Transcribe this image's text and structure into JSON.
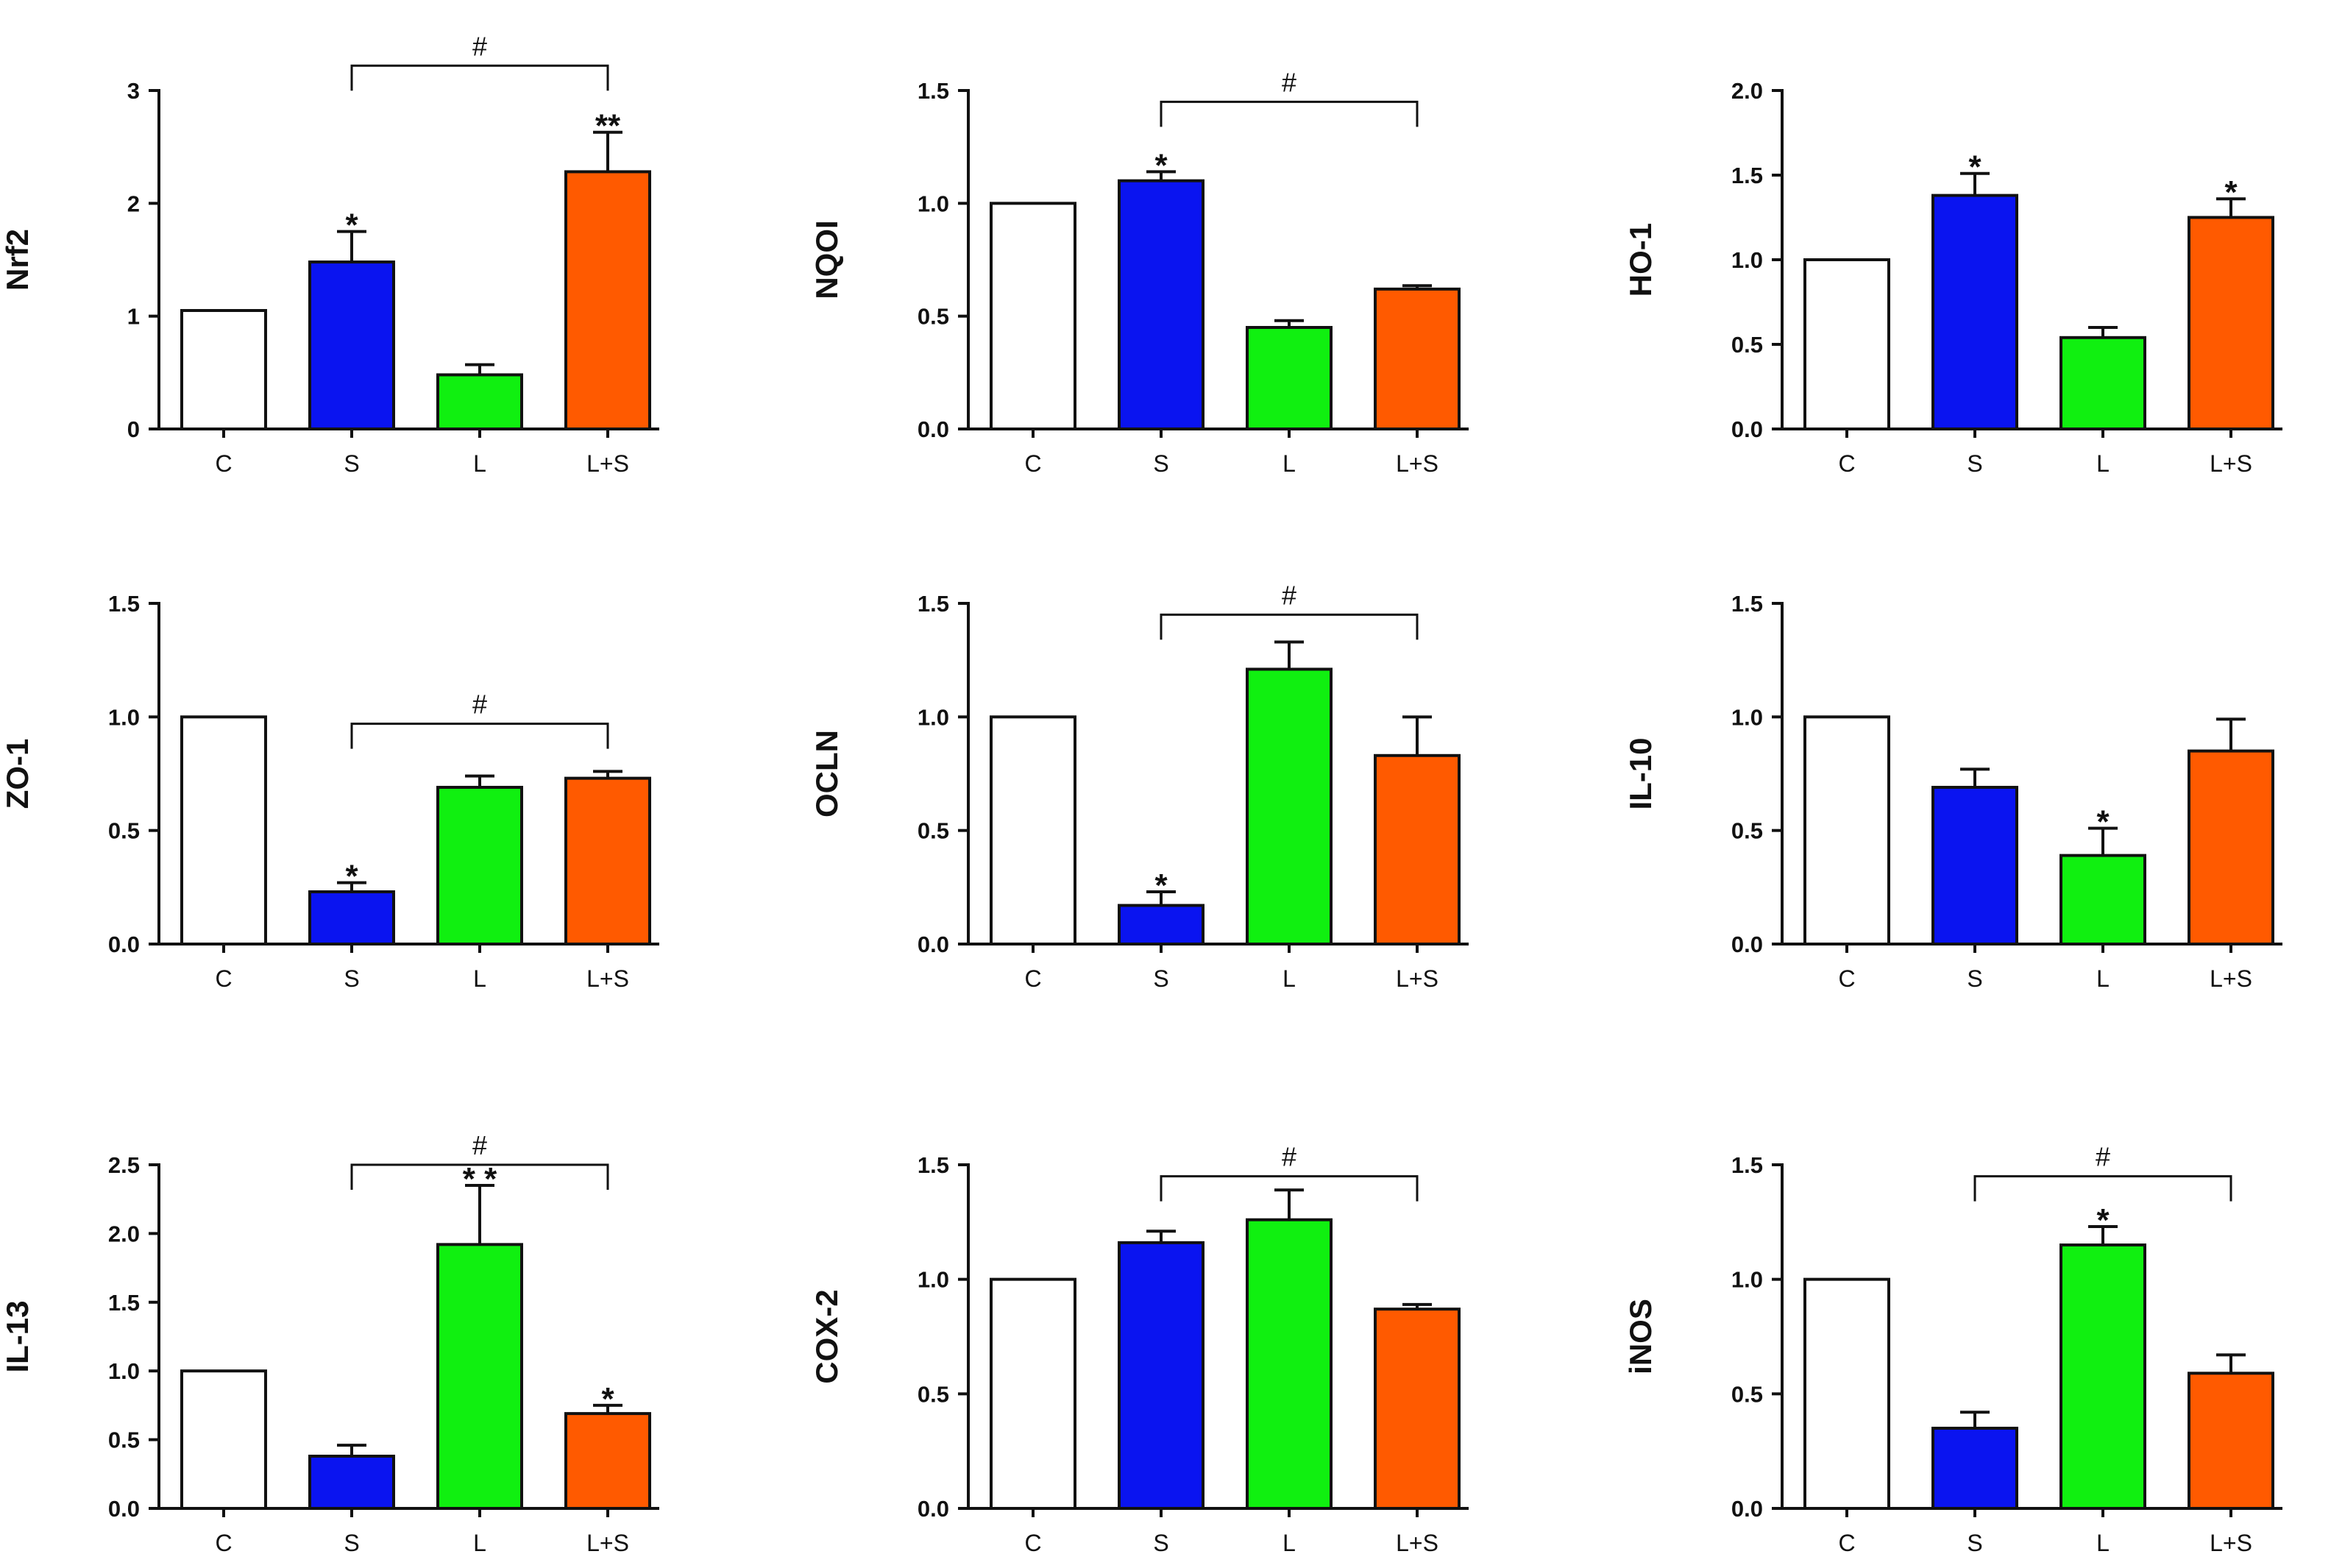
{
  "colors": {
    "C": "#ffffff",
    "S": "#0a14f0",
    "L": "#10f010",
    "L+S": "#ff5a00",
    "axis": "#111111"
  },
  "chart_data": [
    {
      "type": "bar",
      "ylabel": "Nrf2",
      "categories": [
        "C",
        "S",
        "L",
        "L+S"
      ],
      "values": [
        1.05,
        1.48,
        0.48,
        2.28
      ],
      "errors": [
        0,
        0.27,
        0.09,
        0.35
      ],
      "ylim": [
        0,
        3
      ],
      "yticks": [
        0,
        1,
        2,
        3
      ],
      "tick_labels": [
        "0",
        "1",
        "2",
        "3"
      ],
      "stars": [
        "",
        "*",
        "",
        "**"
      ],
      "bracket": {
        "from": "S",
        "to": "L+S",
        "label": "#",
        "at": 3.22
      }
    },
    {
      "type": "bar",
      "ylabel": "NQOI",
      "categories": [
        "C",
        "S",
        "L",
        "L+S"
      ],
      "values": [
        1.0,
        1.1,
        0.45,
        0.62
      ],
      "errors": [
        0,
        0.04,
        0.03,
        0.015
      ],
      "ylim": [
        0,
        1.5
      ],
      "yticks": [
        0,
        0.5,
        1,
        1.5
      ],
      "tick_labels": [
        "0.0",
        "0.5",
        "1.0",
        "1.5"
      ],
      "stars": [
        "",
        "*",
        "",
        ""
      ],
      "bracket": {
        "from": "S",
        "to": "L+S",
        "label": "#",
        "at": 1.45
      }
    },
    {
      "type": "bar",
      "ylabel": "HO-1",
      "categories": [
        "C",
        "S",
        "L",
        "L+S"
      ],
      "values": [
        1.0,
        1.38,
        0.54,
        1.25
      ],
      "errors": [
        0,
        0.13,
        0.06,
        0.11
      ],
      "ylim": [
        0,
        2
      ],
      "yticks": [
        0,
        0.5,
        1,
        1.5,
        2
      ],
      "tick_labels": [
        "0.0",
        "0.5",
        "1.0",
        "1.5",
        "2.0"
      ],
      "stars": [
        "",
        "*",
        "",
        "*"
      ],
      "bracket": null
    },
    {
      "type": "bar",
      "ylabel": "ZO-1",
      "categories": [
        "C",
        "S",
        "L",
        "L+S"
      ],
      "values": [
        1.0,
        0.23,
        0.69,
        0.73
      ],
      "errors": [
        0,
        0.04,
        0.05,
        0.03
      ],
      "ylim": [
        0,
        1.5
      ],
      "yticks": [
        0,
        0.5,
        1,
        1.5
      ],
      "tick_labels": [
        "0.0",
        "0.5",
        "1.0",
        "1.5"
      ],
      "stars": [
        "",
        "*",
        "",
        ""
      ],
      "bracket": {
        "from": "S",
        "to": "L+S",
        "label": "#",
        "at": 0.97
      }
    },
    {
      "type": "bar",
      "ylabel": "OCLN",
      "categories": [
        "C",
        "S",
        "L",
        "L+S"
      ],
      "values": [
        1.0,
        0.17,
        1.21,
        0.83
      ],
      "errors": [
        0,
        0.06,
        0.12,
        0.17
      ],
      "ylim": [
        0,
        1.5
      ],
      "yticks": [
        0,
        0.5,
        1,
        1.5
      ],
      "tick_labels": [
        "0.0",
        "0.5",
        "1.0",
        "1.5"
      ],
      "stars": [
        "",
        "*",
        "",
        ""
      ],
      "bracket": {
        "from": "S",
        "to": "L+S",
        "label": "#",
        "at": 1.45
      }
    },
    {
      "type": "bar",
      "ylabel": "IL-10",
      "categories": [
        "C",
        "S",
        "L",
        "L+S"
      ],
      "values": [
        1.0,
        0.69,
        0.39,
        0.85
      ],
      "errors": [
        0,
        0.08,
        0.12,
        0.14
      ],
      "ylim": [
        0,
        1.5
      ],
      "yticks": [
        0,
        0.5,
        1,
        1.5
      ],
      "tick_labels": [
        "0.0",
        "0.5",
        "1.0",
        "1.5"
      ],
      "stars": [
        "",
        "",
        "*",
        ""
      ],
      "bracket": null
    },
    {
      "type": "bar",
      "ylabel": "IL-13",
      "categories": [
        "C",
        "S",
        "L",
        "L+S"
      ],
      "values": [
        1.0,
        0.38,
        1.92,
        0.69
      ],
      "errors": [
        0,
        0.08,
        0.43,
        0.06
      ],
      "ylim": [
        0,
        2.5
      ],
      "yticks": [
        0,
        0.5,
        1,
        1.5,
        2,
        2.5
      ],
      "tick_labels": [
        "0.0",
        "0.5",
        "1.0",
        "1.5",
        "2.0",
        "2.5"
      ],
      "stars": [
        "",
        "",
        "* *",
        "*"
      ],
      "bracket": {
        "from": "S",
        "to": "L+S",
        "label": "#",
        "at": 2.5
      }
    },
    {
      "type": "bar",
      "ylabel": "COX-2",
      "categories": [
        "C",
        "S",
        "L",
        "L+S"
      ],
      "values": [
        1.0,
        1.16,
        1.26,
        0.87
      ],
      "errors": [
        0,
        0.05,
        0.13,
        0.02
      ],
      "ylim": [
        0,
        1.5
      ],
      "yticks": [
        0,
        0.5,
        1,
        1.5
      ],
      "tick_labels": [
        "0.0",
        "0.5",
        "1.0",
        "1.5"
      ],
      "stars": [
        "",
        "",
        "",
        ""
      ],
      "bracket": {
        "from": "S",
        "to": "L+S",
        "label": "#",
        "at": 1.45
      }
    },
    {
      "type": "bar",
      "ylabel": "iNOS",
      "categories": [
        "C",
        "S",
        "L",
        "L+S"
      ],
      "values": [
        1.0,
        0.35,
        1.15,
        0.59
      ],
      "errors": [
        0,
        0.07,
        0.08,
        0.08
      ],
      "ylim": [
        0,
        1.5
      ],
      "yticks": [
        0,
        0.5,
        1,
        1.5
      ],
      "tick_labels": [
        "0.0",
        "0.5",
        "1.0",
        "1.5"
      ],
      "stars": [
        "",
        "",
        "*",
        ""
      ],
      "bracket": {
        "from": "S",
        "to": "L+S",
        "label": "#",
        "at": 1.45
      }
    }
  ]
}
